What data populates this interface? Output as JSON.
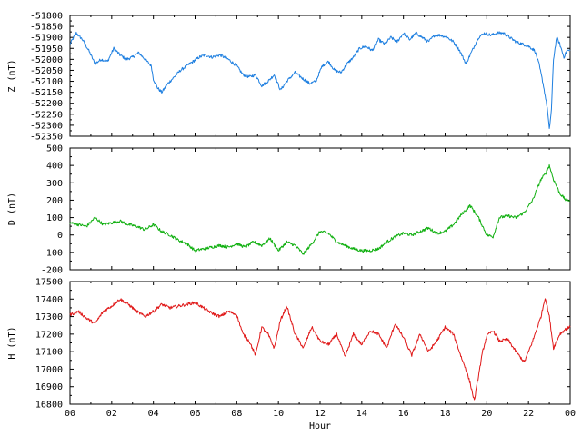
{
  "chart_data": [
    {
      "type": "line",
      "ylabel": "Z (nT)",
      "ylim": [
        -52350,
        -51800
      ],
      "yticks": [
        -51800,
        -51850,
        -51900,
        -51950,
        -52000,
        -52050,
        -52100,
        -52150,
        -52200,
        -52250,
        -52300,
        -52350
      ],
      "xlim": [
        0,
        24
      ],
      "series": [
        {
          "color": "#1e7fe0",
          "x": [
            0,
            0.3,
            0.6,
            0.9,
            1.2,
            1.5,
            1.8,
            2.1,
            2.4,
            2.7,
            3.0,
            3.3,
            3.6,
            3.9,
            4.0,
            4.2,
            4.4,
            4.7,
            5.0,
            5.3,
            5.6,
            5.9,
            6.2,
            6.5,
            6.8,
            7.2,
            7.6,
            8.0,
            8.3,
            8.6,
            8.9,
            9.2,
            9.5,
            9.8,
            10.1,
            10.4,
            10.8,
            11.2,
            11.5,
            11.8,
            12.1,
            12.4,
            12.7,
            13.0,
            13.3,
            13.6,
            13.9,
            14.2,
            14.5,
            14.8,
            15.1,
            15.4,
            15.7,
            16.0,
            16.3,
            16.6,
            16.9,
            17.2,
            17.5,
            17.8,
            18.1,
            18.4,
            18.7,
            19.0,
            19.3,
            19.6,
            19.9,
            20.2,
            20.5,
            20.8,
            21.1,
            21.4,
            21.7,
            22.0,
            22.3,
            22.5,
            22.7,
            22.9,
            23.0,
            23.1,
            23.2,
            23.35,
            23.5,
            23.7,
            23.85,
            24.0
          ],
          "y": [
            -51930,
            -51880,
            -51910,
            -51960,
            -52020,
            -52000,
            -52010,
            -51950,
            -51980,
            -52000,
            -51990,
            -51970,
            -52000,
            -52030,
            -52090,
            -52130,
            -52150,
            -52110,
            -52080,
            -52050,
            -52030,
            -52010,
            -51990,
            -51980,
            -51990,
            -51980,
            -52000,
            -52030,
            -52070,
            -52080,
            -52070,
            -52120,
            -52100,
            -52070,
            -52140,
            -52100,
            -52060,
            -52090,
            -52110,
            -52100,
            -52030,
            -52010,
            -52050,
            -52060,
            -52020,
            -51990,
            -51950,
            -51940,
            -51960,
            -51910,
            -51930,
            -51900,
            -51920,
            -51880,
            -51910,
            -51880,
            -51900,
            -51920,
            -51890,
            -51890,
            -51900,
            -51920,
            -51960,
            -52020,
            -51960,
            -51900,
            -51880,
            -51890,
            -51880,
            -51880,
            -51900,
            -51920,
            -51930,
            -51940,
            -51960,
            -52020,
            -52110,
            -52220,
            -52320,
            -52230,
            -52000,
            -51900,
            -51930,
            -51990,
            -51960,
            -51960
          ]
        }
      ]
    },
    {
      "type": "line",
      "ylabel": "D (nT)",
      "ylim": [
        -200,
        500
      ],
      "yticks": [
        500,
        400,
        300,
        200,
        100,
        0,
        -100,
        -200
      ],
      "xlim": [
        0,
        24
      ],
      "series": [
        {
          "color": "#11b011",
          "x": [
            0,
            0.4,
            0.8,
            1.2,
            1.6,
            2.0,
            2.4,
            2.8,
            3.2,
            3.6,
            4.0,
            4.4,
            4.8,
            5.2,
            5.6,
            6.0,
            6.4,
            6.8,
            7.2,
            7.6,
            8.0,
            8.4,
            8.8,
            9.2,
            9.6,
            10.0,
            10.4,
            10.8,
            11.2,
            11.6,
            12.0,
            12.4,
            12.8,
            13.2,
            13.6,
            14.0,
            14.4,
            14.8,
            15.2,
            15.6,
            16.0,
            16.4,
            16.8,
            17.2,
            17.6,
            18.0,
            18.4,
            18.8,
            19.2,
            19.6,
            20.0,
            20.3,
            20.6,
            21.0,
            21.4,
            21.8,
            22.2,
            22.6,
            22.8,
            23.0,
            23.2,
            23.5,
            23.8,
            24.0
          ],
          "y": [
            70,
            60,
            50,
            100,
            60,
            70,
            80,
            60,
            50,
            30,
            60,
            20,
            0,
            -30,
            -50,
            -90,
            -80,
            -70,
            -60,
            -70,
            -50,
            -70,
            -40,
            -60,
            -20,
            -90,
            -40,
            -60,
            -110,
            -50,
            20,
            10,
            -40,
            -60,
            -80,
            -90,
            -90,
            -80,
            -40,
            -10,
            10,
            0,
            20,
            40,
            10,
            20,
            60,
            120,
            170,
            100,
            0,
            -10,
            100,
            110,
            100,
            130,
            200,
            320,
            350,
            400,
            320,
            240,
            200,
            200
          ]
        }
      ]
    },
    {
      "type": "line",
      "ylabel": "H (nT)",
      "ylim": [
        16800,
        17500
      ],
      "yticks": [
        17500,
        17400,
        17300,
        17200,
        17100,
        17000,
        16900,
        16800
      ],
      "xlim": [
        0,
        24
      ],
      "xlabel": "Hour",
      "xtick_labels": [
        "00",
        "02",
        "04",
        "06",
        "08",
        "10",
        "12",
        "14",
        "16",
        "18",
        "20",
        "22",
        "00"
      ],
      "series": [
        {
          "color": "#e01818",
          "x": [
            0,
            0.4,
            0.8,
            1.2,
            1.6,
            2.0,
            2.4,
            2.8,
            3.2,
            3.6,
            4.0,
            4.4,
            4.8,
            5.2,
            5.6,
            6.0,
            6.4,
            6.8,
            7.2,
            7.6,
            8.0,
            8.3,
            8.6,
            8.9,
            9.2,
            9.5,
            9.8,
            10.1,
            10.4,
            10.8,
            11.2,
            11.6,
            12.0,
            12.4,
            12.8,
            13.2,
            13.6,
            14.0,
            14.4,
            14.8,
            15.2,
            15.6,
            16.0,
            16.4,
            16.8,
            17.2,
            17.6,
            18.0,
            18.4,
            18.8,
            19.0,
            19.2,
            19.4,
            19.6,
            19.8,
            20.0,
            20.3,
            20.6,
            21.0,
            21.4,
            21.8,
            22.2,
            22.6,
            22.8,
            23.0,
            23.2,
            23.5,
            23.8,
            24.0
          ],
          "y": [
            17310,
            17330,
            17290,
            17260,
            17330,
            17360,
            17400,
            17370,
            17330,
            17300,
            17330,
            17370,
            17350,
            17360,
            17370,
            17380,
            17350,
            17320,
            17300,
            17330,
            17310,
            17200,
            17160,
            17080,
            17240,
            17200,
            17120,
            17280,
            17360,
            17200,
            17120,
            17240,
            17160,
            17140,
            17200,
            17070,
            17200,
            17140,
            17220,
            17200,
            17120,
            17260,
            17180,
            17080,
            17200,
            17100,
            17160,
            17240,
            17200,
            17060,
            17000,
            16920,
            16820,
            16960,
            17100,
            17190,
            17220,
            17160,
            17170,
            17100,
            17040,
            17160,
            17300,
            17410,
            17300,
            17120,
            17200,
            17230,
            17240
          ]
        }
      ]
    }
  ]
}
